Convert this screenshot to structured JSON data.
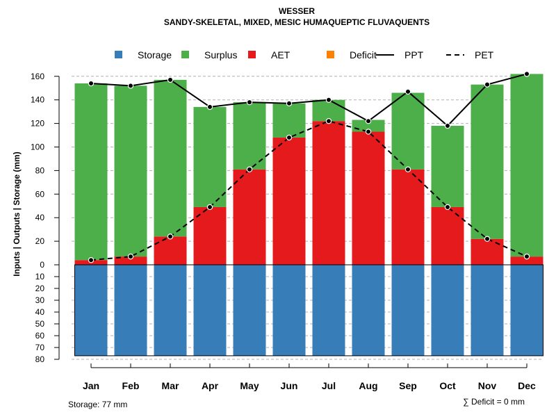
{
  "chart_data": {
    "type": "bar",
    "title": "WESSER",
    "subtitle": "SANDY-SKELETAL, MIXED, MESIC HUMAQUEPTIC FLUVAQUENTS",
    "ylabel": "Inputs | Outputs | Storage     (mm)",
    "categories": [
      "Jan",
      "Feb",
      "Mar",
      "Apr",
      "May",
      "Jun",
      "Jul",
      "Aug",
      "Sep",
      "Oct",
      "Nov",
      "Dec"
    ],
    "ylim_upper": [
      0,
      170
    ],
    "ylim_lower": [
      0,
      80
    ],
    "yticks_upper": [
      "0",
      "20",
      "40",
      "60",
      "80",
      "100",
      "120",
      "140",
      "160"
    ],
    "yticks_lower": [
      "10",
      "20",
      "30",
      "40",
      "50",
      "60",
      "70",
      "80"
    ],
    "series": [
      {
        "name": "Storage",
        "color": "#377EB8",
        "values": [
          77,
          77,
          77,
          77,
          77,
          77,
          77,
          77,
          77,
          77,
          77,
          77
        ]
      },
      {
        "name": "Surplus",
        "color": "#4DAF4A",
        "values": [
          150,
          145,
          133,
          85,
          57,
          29,
          18,
          10,
          65,
          69,
          131,
          155
        ]
      },
      {
        "name": "AET",
        "color": "#E41A1C",
        "values": [
          4,
          7,
          24,
          49,
          81,
          108,
          122,
          113,
          81,
          49,
          22,
          7
        ]
      },
      {
        "name": "Deficit",
        "color": "#FF7F00",
        "values": [
          0,
          0,
          0,
          0,
          0,
          0,
          0,
          0,
          0,
          0,
          0,
          0
        ]
      }
    ],
    "lines": [
      {
        "name": "PPT",
        "style": "solid",
        "values": [
          154,
          152,
          157,
          134,
          138,
          137,
          140,
          122,
          147,
          118,
          153,
          162
        ]
      },
      {
        "name": "PET",
        "style": "dashed",
        "values": [
          4,
          7,
          24,
          49,
          81,
          108,
          122,
          113,
          81,
          49,
          22,
          7
        ]
      }
    ],
    "legend": [
      "Storage",
      "Surplus",
      "AET",
      "Deficit",
      "PPT",
      "PET"
    ],
    "legend_position": "top",
    "grid": true,
    "storage_note": "Storage: 77 mm",
    "deficit_note": "∑ Deficit = 0 mm"
  }
}
